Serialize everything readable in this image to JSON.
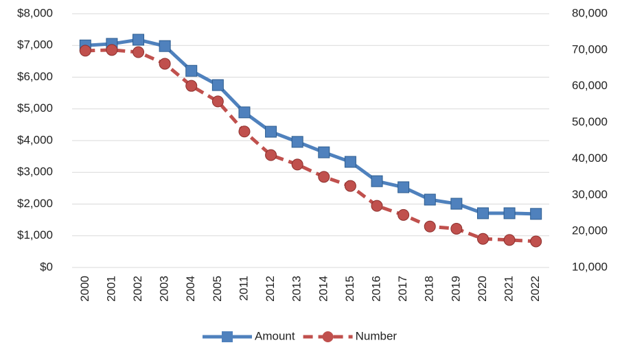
{
  "chart_data": {
    "type": "line",
    "categories": [
      "2000",
      "2001",
      "2002",
      "2003",
      "2004",
      "2005",
      "2011",
      "2012",
      "2013",
      "2014",
      "2015",
      "2016",
      "2017",
      "2018",
      "2019",
      "2020",
      "2021",
      "2022"
    ],
    "series": [
      {
        "name": "Amount",
        "color": "#4f81bd",
        "values": [
          7000,
          7050,
          7180,
          6980,
          6200,
          5750,
          4890,
          4280,
          3960,
          3630,
          3330,
          2720,
          2530,
          2140,
          2010,
          1710,
          1710,
          1690
        ]
      },
      {
        "name": "Number",
        "color": "#c0504d",
        "axis": "y2",
        "values": [
          69800,
          70000,
          69400,
          66200,
          60100,
          55800,
          47500,
          41000,
          38400,
          35000,
          32500,
          27000,
          24500,
          21300,
          20700,
          17900,
          17600,
          17200
        ]
      }
    ],
    "ylim": [
      0,
      8000
    ],
    "yticks": [
      {
        "value": 0,
        "label": "$0"
      },
      {
        "value": 1000,
        "label": "$1,000"
      },
      {
        "value": 2000,
        "label": "$2,000"
      },
      {
        "value": 3000,
        "label": "$3,000"
      },
      {
        "value": 4000,
        "label": "$4,000"
      },
      {
        "value": 5000,
        "label": "$5,000"
      },
      {
        "value": 6000,
        "label": "$6,000"
      },
      {
        "value": 7000,
        "label": "$7,000"
      },
      {
        "value": 8000,
        "label": "$8,000"
      }
    ],
    "y2lim": [
      10000,
      80000
    ],
    "y2ticks": [
      {
        "value": 10000,
        "label": "10,000"
      },
      {
        "value": 20000,
        "label": "20,000"
      },
      {
        "value": 30000,
        "label": "30,000"
      },
      {
        "value": 40000,
        "label": "40,000"
      },
      {
        "value": 50000,
        "label": "50,000"
      },
      {
        "value": 60000,
        "label": "60,000"
      },
      {
        "value": 70000,
        "label": "70,000"
      },
      {
        "value": 80000,
        "label": "80,000"
      }
    ],
    "grid": true,
    "legend": "bottom"
  }
}
